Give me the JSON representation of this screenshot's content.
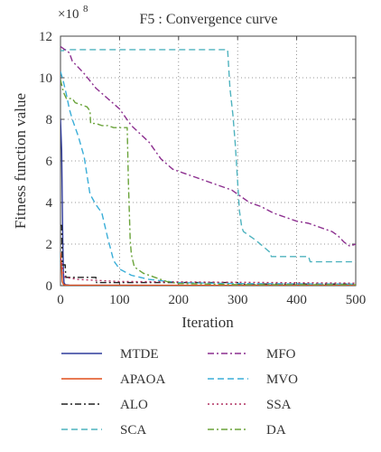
{
  "chart_data": {
    "type": "line",
    "title": "F5 : Convergence curve",
    "xlabel": "Iteration",
    "ylabel": "Fitness function value",
    "y_scale_base": "×10",
    "y_scale_exponent": "8",
    "xlim": [
      0,
      500
    ],
    "ylim": [
      0,
      12
    ],
    "grid": true,
    "legend_position": "below",
    "x_ticks": [
      0,
      100,
      200,
      300,
      400,
      500
    ],
    "y_ticks": [
      0,
      2,
      4,
      6,
      8,
      10,
      12
    ],
    "x_tick_labels": [
      "0",
      "100",
      "200",
      "300",
      "400",
      "500"
    ],
    "y_tick_labels": [
      "0",
      "2",
      "4",
      "6",
      "8",
      "10",
      "12"
    ],
    "series": [
      {
        "name": "MTDE",
        "color": "#2f3b9c",
        "dash": "solid",
        "points": [
          [
            0,
            8.0
          ],
          [
            2,
            6.5
          ],
          [
            3,
            4.0
          ],
          [
            4,
            2.0
          ],
          [
            5,
            0.6
          ],
          [
            6,
            0.15
          ],
          [
            8,
            0.05
          ],
          [
            15,
            0.02
          ],
          [
            500,
            0.01
          ]
        ]
      },
      {
        "name": "APAOA",
        "color": "#e04e1a",
        "dash": "solid",
        "points": [
          [
            0,
            1.6
          ],
          [
            2,
            0.8
          ],
          [
            3,
            0.2
          ],
          [
            5,
            0.05
          ],
          [
            10,
            0.02
          ],
          [
            500,
            0.01
          ]
        ]
      },
      {
        "name": "ALO",
        "color": "#222222",
        "dash": "dashdot",
        "points": [
          [
            0,
            2.9
          ],
          [
            2,
            2.9
          ],
          [
            3,
            1.0
          ],
          [
            8,
            1.0
          ],
          [
            9,
            0.4
          ],
          [
            60,
            0.4
          ],
          [
            61,
            0.15
          ],
          [
            300,
            0.15
          ],
          [
            301,
            0.08
          ],
          [
            500,
            0.08
          ]
        ]
      },
      {
        "name": "SCA",
        "color": "#4fb3bf",
        "dash": "dashed",
        "points": [
          [
            0,
            11.3
          ],
          [
            5,
            11.3
          ],
          [
            6,
            11.35
          ],
          [
            283,
            11.35
          ],
          [
            287,
            9.5
          ],
          [
            292,
            8.2
          ],
          [
            296,
            6.8
          ],
          [
            300,
            5.0
          ],
          [
            303,
            3.6
          ],
          [
            307,
            2.8
          ],
          [
            310,
            2.6
          ],
          [
            330,
            2.2
          ],
          [
            355,
            1.6
          ],
          [
            357,
            1.4
          ],
          [
            420,
            1.4
          ],
          [
            423,
            1.15
          ],
          [
            500,
            1.15
          ]
        ]
      },
      {
        "name": "MFO",
        "color": "#8c2f8f",
        "dash": "dashdot",
        "points": [
          [
            0,
            11.5
          ],
          [
            15,
            11.2
          ],
          [
            20,
            10.8
          ],
          [
            40,
            10.2
          ],
          [
            60,
            9.5
          ],
          [
            80,
            9.0
          ],
          [
            100,
            8.5
          ],
          [
            120,
            7.7
          ],
          [
            150,
            6.9
          ],
          [
            170,
            6.1
          ],
          [
            190,
            5.6
          ],
          [
            210,
            5.4
          ],
          [
            230,
            5.2
          ],
          [
            250,
            5.0
          ],
          [
            270,
            4.8
          ],
          [
            290,
            4.6
          ],
          [
            300,
            4.4
          ],
          [
            320,
            4.0
          ],
          [
            340,
            3.8
          ],
          [
            360,
            3.5
          ],
          [
            380,
            3.3
          ],
          [
            400,
            3.1
          ],
          [
            420,
            3.0
          ],
          [
            440,
            2.8
          ],
          [
            460,
            2.6
          ],
          [
            470,
            2.4
          ],
          [
            480,
            2.1
          ],
          [
            490,
            1.9
          ],
          [
            500,
            2.0
          ]
        ]
      },
      {
        "name": "MVO",
        "color": "#3aaed8",
        "dash": "dashed",
        "points": [
          [
            0,
            10.3
          ],
          [
            5,
            9.8
          ],
          [
            10,
            9.2
          ],
          [
            15,
            8.5
          ],
          [
            20,
            8.0
          ],
          [
            30,
            7.2
          ],
          [
            40,
            6.2
          ],
          [
            45,
            5.3
          ],
          [
            50,
            4.4
          ],
          [
            60,
            3.9
          ],
          [
            70,
            3.5
          ],
          [
            80,
            2.3
          ],
          [
            90,
            1.2
          ],
          [
            100,
            0.8
          ],
          [
            120,
            0.5
          ],
          [
            150,
            0.3
          ],
          [
            200,
            0.15
          ],
          [
            300,
            0.1
          ],
          [
            500,
            0.08
          ]
        ]
      },
      {
        "name": "SSA",
        "color": "#b03060",
        "dash": "dotted",
        "points": [
          [
            0,
            1.3
          ],
          [
            3,
            1.0
          ],
          [
            5,
            0.6
          ],
          [
            8,
            0.4
          ],
          [
            30,
            0.3
          ],
          [
            100,
            0.2
          ],
          [
            500,
            0.12
          ]
        ]
      },
      {
        "name": "DA",
        "color": "#6aa33a",
        "dash": "dashdot",
        "points": [
          [
            0,
            9.9
          ],
          [
            5,
            9.3
          ],
          [
            10,
            9.0
          ],
          [
            20,
            9.0
          ],
          [
            25,
            8.8
          ],
          [
            45,
            8.6
          ],
          [
            50,
            8.4
          ],
          [
            51,
            7.8
          ],
          [
            60,
            7.8
          ],
          [
            70,
            7.7
          ],
          [
            80,
            7.7
          ],
          [
            90,
            7.6
          ],
          [
            113,
            7.6
          ],
          [
            115,
            5.0
          ],
          [
            118,
            2.2
          ],
          [
            120,
            1.5
          ],
          [
            125,
            0.9
          ],
          [
            140,
            0.6
          ],
          [
            160,
            0.4
          ],
          [
            180,
            0.2
          ],
          [
            200,
            0.1
          ],
          [
            250,
            0.08
          ],
          [
            300,
            0.05
          ],
          [
            500,
            0.05
          ]
        ]
      }
    ]
  }
}
